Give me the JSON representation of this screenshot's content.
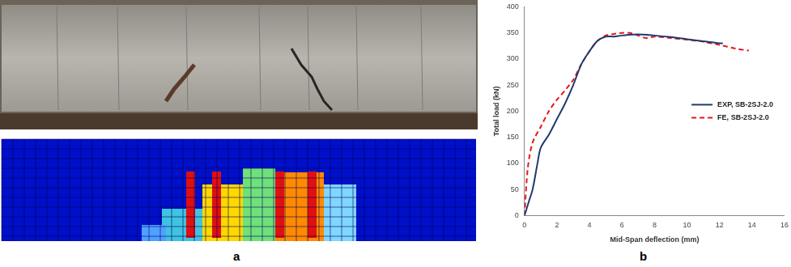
{
  "panel_labels": [
    "a",
    "b"
  ],
  "chart_data": {
    "type": "line",
    "x_label": "Mid-Span deflection (mm)",
    "y_label": "Total load (kN)",
    "xlim": [
      0,
      16
    ],
    "xticks": [
      0,
      2,
      4,
      6,
      8,
      10,
      12,
      14,
      16
    ],
    "ylim": [
      0,
      400
    ],
    "yticks": [
      0,
      50,
      100,
      150,
      200,
      250,
      300,
      350,
      400
    ],
    "grid": false,
    "legend": "right",
    "series": [
      {
        "name": "EXP, SB-2SJ-2.0",
        "color": "#1f3a6e",
        "line_style": "solid",
        "x": [
          0,
          0.3,
          0.5,
          0.8,
          1.0,
          1.5,
          2.0,
          2.5,
          3.0,
          3.5,
          4.0,
          4.5,
          5.0,
          5.5,
          6.0,
          7.0,
          8.0,
          9.0,
          10.0,
          11.0,
          12.0,
          12.2
        ],
        "values": [
          0,
          30,
          50,
          100,
          130,
          155,
          185,
          215,
          250,
          290,
          315,
          335,
          343,
          343,
          345,
          347,
          345,
          342,
          338,
          334,
          330,
          330
        ]
      },
      {
        "name": "FE, SB-2SJ-2.0",
        "color": "#e8141b",
        "line_style": "dashed",
        "x": [
          0,
          0.2,
          0.5,
          1.0,
          1.5,
          2.0,
          2.5,
          3.0,
          3.5,
          4.0,
          4.5,
          5.0,
          5.5,
          6.0,
          6.5,
          7.0,
          7.5,
          8.0,
          9.0,
          10.0,
          11.0,
          12.0,
          13.0,
          13.8
        ],
        "values": [
          0,
          90,
          140,
          170,
          200,
          222,
          240,
          260,
          290,
          315,
          335,
          345,
          348,
          350,
          350,
          345,
          340,
          343,
          340,
          337,
          333,
          327,
          320,
          316
        ]
      }
    ]
  }
}
